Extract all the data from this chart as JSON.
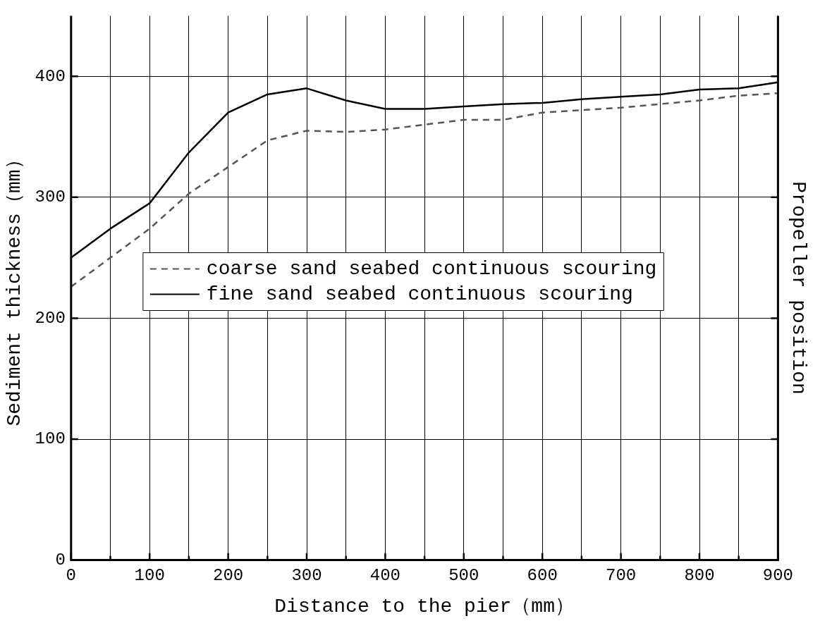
{
  "chart_data": {
    "type": "line",
    "xlabel": "Distance to the pier（mm）",
    "ylabel": "Sediment thickness（mm）",
    "y2label": "Propeller position",
    "x": [
      0,
      50,
      100,
      150,
      200,
      250,
      300,
      350,
      400,
      450,
      500,
      550,
      600,
      650,
      700,
      750,
      800,
      850,
      900
    ],
    "series": [
      {
        "name": "coarse sand seabed continuous scouring",
        "color": "#555555",
        "line_style": "dashed",
        "values": [
          226,
          250,
          274,
          303,
          325,
          347,
          355,
          354,
          356,
          360,
          364,
          364,
          370,
          372,
          374,
          377,
          380,
          384,
          386
        ]
      },
      {
        "name": "fine sand seabed continuous scouring",
        "color": "#000000",
        "line_style": "solid",
        "values": [
          250,
          274,
          295,
          337,
          370,
          385,
          390,
          380,
          373,
          373,
          375,
          377,
          378,
          381,
          383,
          385,
          389,
          390,
          395
        ]
      }
    ],
    "xlim": [
      0,
      900
    ],
    "xticks": [
      0,
      {
        "value": 50,
        "label": null
      },
      100,
      {
        "value": 150,
        "label": null
      },
      200,
      {
        "value": 250,
        "label": null
      },
      300,
      {
        "value": 350,
        "label": null
      },
      400,
      {
        "value": 450,
        "label": null
      },
      500,
      {
        "value": 550,
        "label": null
      },
      600,
      {
        "value": 650,
        "label": null
      },
      700,
      {
        "value": 750,
        "label": null
      },
      800,
      {
        "value": 850,
        "label": null
      },
      900
    ],
    "ylim": [
      0,
      450
    ],
    "yticks": [
      0,
      100,
      200,
      300,
      400
    ],
    "grid": true,
    "legend": "center",
    "marker": "none"
  }
}
